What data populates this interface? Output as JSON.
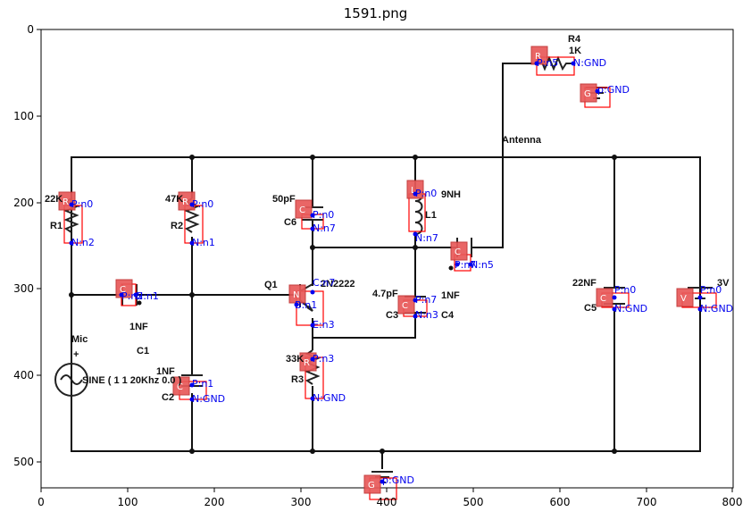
{
  "figure": {
    "title": "1591.png"
  },
  "axes": {
    "x_ticks": [
      "0",
      "100",
      "200",
      "300",
      "400",
      "500",
      "600",
      "700",
      "800"
    ],
    "y_ticks": [
      "0",
      "100",
      "200",
      "300",
      "400",
      "500"
    ]
  },
  "circuit_labels": {
    "r4": "R4",
    "r4_val": "1K",
    "antenna": "Antenna",
    "r1_val": "22K",
    "r1": "R1",
    "r2_val": "47K",
    "r2": "R2",
    "c6_val": "50pF",
    "c6": "C6",
    "l1_val": "9NH",
    "l1": "L1",
    "c1_val": "1NF",
    "c1": "C1",
    "q1": "Q1",
    "q1_part": "2N2222",
    "c3_val": "4.7pF",
    "c3": "C3",
    "c4": "C4",
    "c4_val": "1NF",
    "c5_val": "22NF",
    "c5": "C5",
    "v_val": "3V",
    "mic": "Mic",
    "plus": "+",
    "source": "SINE ( 1 1 20Khz 0.0 )",
    "c2_val": "1NF",
    "c2": "C2",
    "r3_val": "33K",
    "r3": "R3"
  },
  "badges": {
    "r": "R",
    "c": "C",
    "l": "L",
    "n": "N",
    "g": "G",
    "v": "V"
  },
  "pins": {
    "r4_p": "P:n5",
    "r4_n": "N:GND",
    "g1": "p:GND",
    "r1_p": "P:n0",
    "r1_n": "N:n2",
    "r2_p": "P:n0",
    "r2_n": "N:n1",
    "c6_p": "P:n0",
    "c6_n": "N:n7",
    "l1_p": "P:n0",
    "l1_n": "N:n7",
    "c1_p": "P:n2",
    "c1_n": "N:n1",
    "q1_c": "C:n7",
    "q1_b": "B:n1",
    "q1_e": "E:n3",
    "c4_p": "P:n7",
    "c4_n": "N:n3",
    "c7_p": "P:n7",
    "c7_n": "N:n5",
    "c5_p": "P:n0",
    "c5_n": "N:GND",
    "v_p": "P:n0",
    "v_n": "N:GND",
    "c2_p": "P:n1",
    "c2_n": "N:GND",
    "r3_p": "P:n3",
    "r3_n": "N:GND",
    "g2": "p:GND"
  }
}
